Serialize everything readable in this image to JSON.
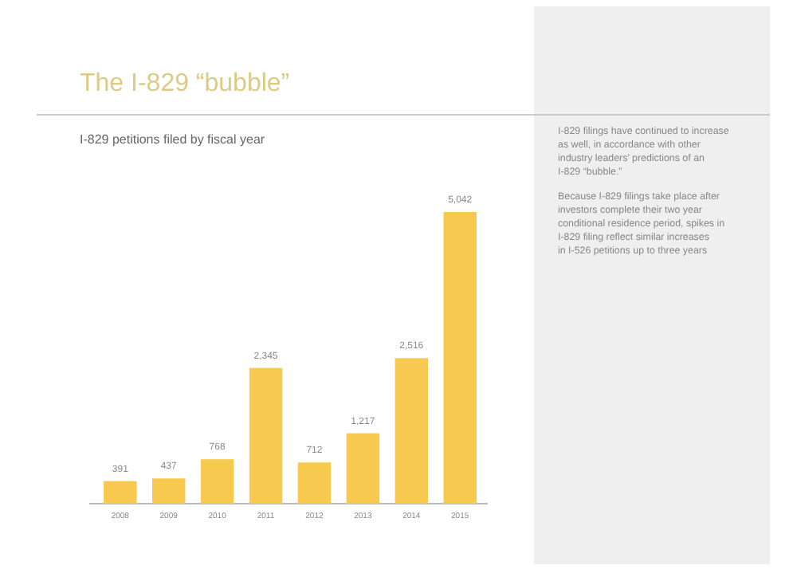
{
  "chart_data": {
    "type": "bar",
    "title": "The I-829 “bubble”",
    "subtitle": "I-829 petitions filed by fiscal year",
    "categories": [
      "2008",
      "2009",
      "2010",
      "2011",
      "2012",
      "2013",
      "2014",
      "2015"
    ],
    "values": [
      391,
      437,
      768,
      2345,
      712,
      1217,
      2516,
      5042
    ],
    "value_labels": [
      "391",
      "437",
      "768",
      "2,345",
      "712",
      "1,217",
      "2,516",
      "5,042"
    ],
    "color": "#f8c94f",
    "annotations": [
      "I-829 filings have continued to increase as well, in accordance with other industry leaders’ predictions of an I-829 “bubble.”",
      "Because I-829 filings take place after investors complete their two year conditional residence period, spikes in I-829 filing reflect similar increases in I-526 petitions up to three years"
    ]
  }
}
